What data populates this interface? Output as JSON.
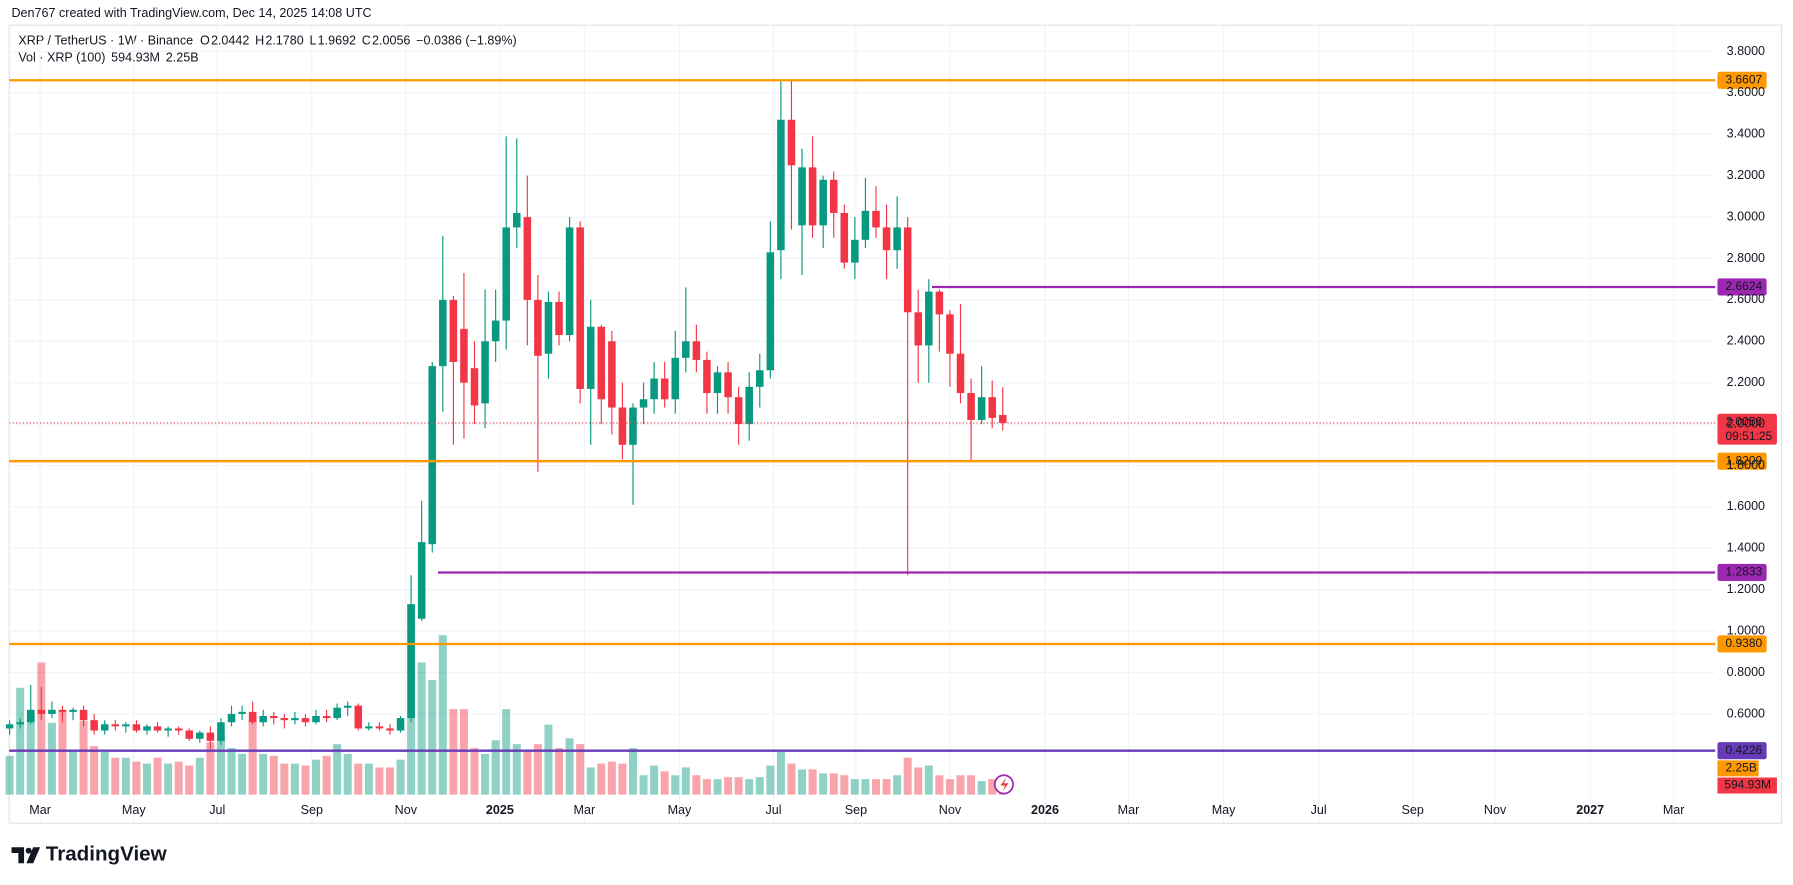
{
  "header": {
    "attribution": "Den767 created with TradingView.com, Dec 14, 2025 14:08 UTC"
  },
  "footer": {
    "logo": "TradingView"
  },
  "chart_data": {
    "type": "candlestick",
    "symbol": "XRP / TetherUS · 1W · Binance",
    "legend_fields": [
      {
        "key": "O",
        "value": "2.0442"
      },
      {
        "key": "H",
        "value": "2.1780"
      },
      {
        "key": "L",
        "value": "1.9692"
      },
      {
        "key": "C",
        "value": "2.0056"
      }
    ],
    "change": "−0.0386 (−1.89%)",
    "volume_title": "Vol · XRP (100)",
    "volume_legend": [
      "594.93M",
      "2.25B"
    ],
    "up_color": "#089981",
    "down_color": "#f23645",
    "ylim": [
      0.072,
      3.938
    ],
    "yticks": [
      {
        "value": 0.6,
        "label": "0.6000"
      },
      {
        "value": 0.8,
        "label": "0.8000"
      },
      {
        "value": 1.0,
        "label": "1.0000"
      },
      {
        "value": 1.2,
        "label": "1.2000"
      },
      {
        "value": 1.4,
        "label": "1.4000"
      },
      {
        "value": 1.6,
        "label": "1.6000"
      },
      {
        "value": 1.8,
        "label": "1.8000"
      },
      {
        "value": 2.0,
        "label": "2.0000"
      },
      {
        "value": 2.2,
        "label": "2.2000"
      },
      {
        "value": 2.4,
        "label": "2.4000"
      },
      {
        "value": 2.6,
        "label": "2.6000"
      },
      {
        "value": 2.8,
        "label": "2.8000"
      },
      {
        "value": 3.0,
        "label": "3.0000"
      },
      {
        "value": 3.2,
        "label": "3.2000"
      },
      {
        "value": 3.4,
        "label": "3.4000"
      },
      {
        "value": 3.6,
        "label": "3.6000"
      },
      {
        "value": 3.8,
        "label": "3.8000"
      }
    ],
    "xlim": [
      -0.04,
      161.43
    ],
    "xticks": [
      {
        "value": 2.88,
        "label": "Mar"
      },
      {
        "value": 11.75,
        "label": "May"
      },
      {
        "value": 19.65,
        "label": "Jul"
      },
      {
        "value": 28.6,
        "label": "Sep"
      },
      {
        "value": 37.5,
        "label": "Nov"
      },
      {
        "value": 46.4,
        "label": "2025"
      },
      {
        "value": 54.4,
        "label": "Mar"
      },
      {
        "value": 63.4,
        "label": "May"
      },
      {
        "value": 72.3,
        "label": "Jul"
      },
      {
        "value": 80.1,
        "label": "Sep"
      },
      {
        "value": 89.0,
        "label": "Nov"
      },
      {
        "value": 98.0,
        "label": "2026"
      },
      {
        "value": 105.9,
        "label": "Mar"
      },
      {
        "value": 114.9,
        "label": "May"
      },
      {
        "value": 123.9,
        "label": "Jul"
      },
      {
        "value": 132.8,
        "label": "Sep"
      },
      {
        "value": 140.6,
        "label": "Nov"
      },
      {
        "value": 149.6,
        "label": "2027"
      },
      {
        "value": 157.5,
        "label": "Mar"
      }
    ],
    "grid": true,
    "ohlc": [
      [
        0.53,
        0.57,
        0.5,
        0.55
      ],
      [
        0.55,
        0.58,
        0.53,
        0.56
      ],
      [
        0.56,
        0.74,
        0.55,
        0.62
      ],
      [
        0.62,
        0.73,
        0.57,
        0.6
      ],
      [
        0.6,
        0.66,
        0.58,
        0.62
      ],
      [
        0.62,
        0.64,
        0.56,
        0.61
      ],
      [
        0.61,
        0.63,
        0.57,
        0.62
      ],
      [
        0.62,
        0.64,
        0.54,
        0.57
      ],
      [
        0.57,
        0.6,
        0.5,
        0.52
      ],
      [
        0.52,
        0.57,
        0.5,
        0.55
      ],
      [
        0.55,
        0.57,
        0.52,
        0.54
      ],
      [
        0.54,
        0.56,
        0.51,
        0.55
      ],
      [
        0.55,
        0.57,
        0.51,
        0.52
      ],
      [
        0.52,
        0.55,
        0.5,
        0.54
      ],
      [
        0.54,
        0.56,
        0.51,
        0.52
      ],
      [
        0.52,
        0.54,
        0.49,
        0.53
      ],
      [
        0.53,
        0.54,
        0.5,
        0.52
      ],
      [
        0.52,
        0.53,
        0.47,
        0.48
      ],
      [
        0.48,
        0.52,
        0.46,
        0.51
      ],
      [
        0.51,
        0.54,
        0.43,
        0.47
      ],
      [
        0.47,
        0.58,
        0.45,
        0.56
      ],
      [
        0.56,
        0.64,
        0.54,
        0.6
      ],
      [
        0.6,
        0.64,
        0.57,
        0.61
      ],
      [
        0.61,
        0.66,
        0.55,
        0.56
      ],
      [
        0.56,
        0.62,
        0.54,
        0.59
      ],
      [
        0.59,
        0.61,
        0.55,
        0.58
      ],
      [
        0.58,
        0.6,
        0.53,
        0.57
      ],
      [
        0.57,
        0.61,
        0.55,
        0.58
      ],
      [
        0.58,
        0.6,
        0.54,
        0.56
      ],
      [
        0.56,
        0.62,
        0.55,
        0.59
      ],
      [
        0.59,
        0.62,
        0.56,
        0.58
      ],
      [
        0.58,
        0.65,
        0.57,
        0.63
      ],
      [
        0.63,
        0.66,
        0.59,
        0.64
      ],
      [
        0.64,
        0.65,
        0.52,
        0.53
      ],
      [
        0.53,
        0.56,
        0.52,
        0.54
      ],
      [
        0.54,
        0.56,
        0.52,
        0.53
      ],
      [
        0.53,
        0.55,
        0.5,
        0.52
      ],
      [
        0.52,
        0.59,
        0.51,
        0.58
      ],
      [
        0.58,
        1.27,
        0.56,
        1.13
      ],
      [
        1.06,
        1.63,
        1.05,
        1.43
      ],
      [
        1.42,
        2.3,
        1.38,
        2.28
      ],
      [
        2.28,
        2.91,
        2.06,
        2.6
      ],
      [
        2.6,
        2.62,
        1.9,
        2.3
      ],
      [
        2.46,
        2.73,
        1.93,
        2.2
      ],
      [
        2.27,
        2.4,
        2.0,
        2.09
      ],
      [
        2.1,
        2.65,
        1.98,
        2.4
      ],
      [
        2.4,
        2.65,
        2.3,
        2.5
      ],
      [
        2.5,
        3.39,
        2.36,
        2.95
      ],
      [
        2.95,
        3.38,
        2.85,
        3.02
      ],
      [
        3.0,
        3.2,
        2.38,
        2.6
      ],
      [
        2.6,
        2.72,
        1.77,
        2.33
      ],
      [
        2.34,
        2.64,
        2.22,
        2.59
      ],
      [
        2.59,
        2.64,
        2.38,
        2.43
      ],
      [
        2.43,
        3.0,
        2.4,
        2.95
      ],
      [
        2.95,
        2.98,
        2.1,
        2.17
      ],
      [
        2.17,
        2.6,
        1.9,
        2.47
      ],
      [
        2.47,
        2.48,
        2.0,
        2.12
      ],
      [
        2.4,
        2.45,
        1.95,
        2.08
      ],
      [
        2.08,
        2.2,
        1.83,
        1.9
      ],
      [
        1.9,
        2.1,
        1.61,
        2.08
      ],
      [
        2.08,
        2.2,
        2.0,
        2.12
      ],
      [
        2.12,
        2.3,
        2.05,
        2.22
      ],
      [
        2.22,
        2.3,
        2.08,
        2.12
      ],
      [
        2.12,
        2.45,
        2.05,
        2.32
      ],
      [
        2.32,
        2.66,
        2.25,
        2.4
      ],
      [
        2.4,
        2.48,
        2.25,
        2.31
      ],
      [
        2.31,
        2.35,
        2.05,
        2.15
      ],
      [
        2.15,
        2.28,
        2.05,
        2.25
      ],
      [
        2.25,
        2.3,
        2.05,
        2.13
      ],
      [
        2.13,
        2.18,
        1.9,
        2.0
      ],
      [
        2.0,
        2.25,
        1.92,
        2.18
      ],
      [
        2.18,
        2.34,
        2.08,
        2.26
      ],
      [
        2.26,
        2.98,
        2.22,
        2.83
      ],
      [
        2.84,
        3.66,
        2.7,
        3.47
      ],
      [
        3.47,
        3.66,
        2.94,
        3.25
      ],
      [
        2.96,
        3.33,
        2.72,
        3.24
      ],
      [
        3.24,
        3.39,
        2.9,
        2.96
      ],
      [
        2.96,
        3.2,
        2.85,
        3.18
      ],
      [
        3.18,
        3.22,
        2.9,
        3.02
      ],
      [
        3.02,
        3.06,
        2.75,
        2.78
      ],
      [
        2.78,
        3.0,
        2.7,
        2.89
      ],
      [
        2.89,
        3.19,
        2.85,
        3.03
      ],
      [
        3.03,
        3.15,
        2.9,
        2.95
      ],
      [
        2.95,
        3.06,
        2.7,
        2.84
      ],
      [
        2.84,
        3.1,
        2.75,
        2.95
      ],
      [
        2.95,
        3.0,
        1.27,
        2.54
      ],
      [
        2.54,
        2.65,
        2.2,
        2.38
      ],
      [
        2.38,
        2.7,
        2.2,
        2.64
      ],
      [
        2.64,
        2.65,
        2.35,
        2.53
      ],
      [
        2.53,
        2.55,
        2.18,
        2.34
      ],
      [
        2.34,
        2.58,
        2.1,
        2.15
      ],
      [
        2.15,
        2.22,
        1.82,
        2.02
      ],
      [
        2.02,
        2.28,
        2.0,
        2.13
      ],
      [
        2.13,
        2.21,
        1.98,
        2.03
      ],
      [
        2.0442,
        2.178,
        1.9692,
        2.0056
      ]
    ],
    "volume_lim": [
      0,
      10
    ],
    "volume": [
      2.0,
      5.5,
      4.2,
      6.8,
      3.7,
      4.3,
      2.3,
      3.8,
      2.5,
      2.2,
      1.9,
      1.9,
      1.7,
      1.6,
      1.9,
      1.6,
      1.7,
      1.5,
      1.9,
      2.7,
      3.0,
      2.4,
      2.1,
      3.9,
      2.1,
      2.0,
      1.6,
      1.6,
      1.5,
      1.8,
      2.0,
      2.6,
      2.1,
      1.6,
      1.6,
      1.4,
      1.4,
      1.8,
      9.8,
      6.8,
      5.9,
      8.2,
      4.4,
      4.4,
      2.4,
      2.1,
      2.8,
      4.4,
      2.6,
      2.2,
      2.6,
      3.6,
      2.4,
      2.9,
      2.6,
      1.4,
      1.6,
      1.7,
      1.6,
      2.4,
      1.0,
      1.5,
      1.2,
      1.0,
      1.4,
      1.0,
      0.8,
      0.8,
      0.9,
      0.9,
      0.8,
      0.9,
      1.5,
      2.2,
      1.6,
      1.3,
      1.3,
      1.1,
      1.1,
      1.0,
      0.8,
      0.8,
      0.8,
      0.8,
      1.0,
      1.9,
      1.4,
      1.5,
      1.0,
      0.8,
      1.0,
      1.0,
      0.7,
      0.8,
      0.59493
    ],
    "volume_ma": {
      "value": 2.25,
      "label": "2.25B",
      "color": "#ff9800"
    },
    "last_volume": {
      "value": 0.59493,
      "label": "594.93M"
    },
    "levels": [
      {
        "value": 3.6607,
        "label": "3.6607",
        "color": "#ff9800"
      },
      {
        "value": 2.6624,
        "label": "2.6624",
        "color": "#9c27b0"
      },
      {
        "value": 1.8209,
        "label": "1.8209",
        "color": "#ff9800"
      },
      {
        "value": 1.2833,
        "label": "1.2833",
        "color": "#9c27b0"
      },
      {
        "value": 0.938,
        "label": "0.9380",
        "color": "#ff9800"
      },
      {
        "value": 0.4226,
        "label": "0.4226",
        "color": "#673ab7"
      }
    ],
    "last_price": {
      "value": 2.0056,
      "label": "2.0056",
      "countdown": "09:51:25"
    }
  }
}
